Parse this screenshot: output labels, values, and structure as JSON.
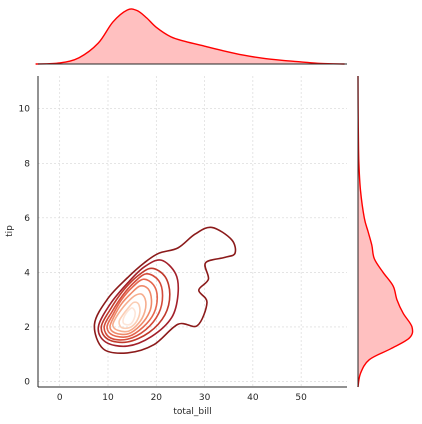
{
  "chart_data": {
    "type": "joint-kde",
    "xlabel": "total_bill",
    "ylabel": "tip",
    "xlim": [
      -4.5,
      59.5
    ],
    "ylim": [
      -0.2,
      11.2
    ],
    "x_ticks": [
      0,
      10,
      20,
      30,
      40,
      50
    ],
    "y_ticks": [
      0,
      2,
      4,
      6,
      8,
      10
    ],
    "grid": true,
    "colors": {
      "marginal_line": "#ff0000",
      "marginal_fill": "#ffc0c0",
      "contour_outer": "#7f0e17",
      "contour_inner": "#fde7d9"
    },
    "contours": [
      {
        "level": 1,
        "color": "#8b1a1a",
        "points": [
          [
            9.0,
            1.2
          ],
          [
            14.0,
            1.05
          ],
          [
            19.5,
            1.35
          ],
          [
            24.5,
            2.1
          ],
          [
            28.5,
            2.05
          ],
          [
            30.5,
            2.9
          ],
          [
            28.8,
            3.35
          ],
          [
            30.8,
            3.75
          ],
          [
            30.2,
            4.35
          ],
          [
            34.2,
            4.55
          ],
          [
            36.3,
            4.7
          ],
          [
            35.6,
            5.2
          ],
          [
            31.5,
            5.65
          ],
          [
            28.0,
            5.4
          ],
          [
            24.5,
            4.9
          ],
          [
            20.5,
            4.7
          ],
          [
            17.5,
            4.35
          ],
          [
            14.0,
            3.8
          ],
          [
            10.0,
            3.05
          ],
          [
            7.2,
            2.1
          ]
        ]
      },
      {
        "level": 2,
        "color": "#a3202a",
        "points": [
          [
            9.5,
            1.45
          ],
          [
            14.0,
            1.3
          ],
          [
            19.0,
            1.65
          ],
          [
            23.2,
            2.35
          ],
          [
            24.5,
            3.2
          ],
          [
            24.0,
            3.95
          ],
          [
            21.0,
            4.45
          ],
          [
            17.5,
            4.2
          ],
          [
            14.0,
            3.6
          ],
          [
            10.5,
            2.85
          ],
          [
            8.0,
            2.0
          ]
        ]
      },
      {
        "level": 3,
        "color": "#c0392b",
        "points": [
          [
            10.0,
            1.55
          ],
          [
            14.0,
            1.45
          ],
          [
            18.5,
            1.8
          ],
          [
            21.8,
            2.45
          ],
          [
            22.8,
            3.2
          ],
          [
            21.8,
            3.85
          ],
          [
            19.0,
            4.15
          ],
          [
            16.0,
            3.85
          ],
          [
            13.0,
            3.3
          ],
          [
            10.5,
            2.65
          ],
          [
            8.6,
            2.0
          ]
        ]
      },
      {
        "level": 4,
        "color": "#d44b3a",
        "points": [
          [
            10.5,
            1.6
          ],
          [
            14.0,
            1.55
          ],
          [
            17.8,
            1.9
          ],
          [
            20.5,
            2.5
          ],
          [
            21.3,
            3.15
          ],
          [
            20.5,
            3.7
          ],
          [
            18.0,
            3.95
          ],
          [
            15.5,
            3.65
          ],
          [
            13.0,
            3.15
          ],
          [
            10.8,
            2.55
          ],
          [
            9.2,
            2.0
          ]
        ]
      },
      {
        "level": 5,
        "color": "#e5674e",
        "points": [
          [
            11.0,
            1.7
          ],
          [
            14.2,
            1.65
          ],
          [
            17.3,
            2.0
          ],
          [
            19.5,
            2.5
          ],
          [
            20.2,
            3.1
          ],
          [
            19.4,
            3.55
          ],
          [
            17.3,
            3.75
          ],
          [
            15.0,
            3.45
          ],
          [
            12.8,
            3.0
          ],
          [
            11.0,
            2.45
          ],
          [
            9.8,
            2.0
          ]
        ]
      },
      {
        "level": 6,
        "color": "#ef8a6a",
        "points": [
          [
            11.5,
            1.78
          ],
          [
            14.2,
            1.75
          ],
          [
            16.8,
            2.08
          ],
          [
            18.6,
            2.55
          ],
          [
            19.0,
            3.0
          ],
          [
            18.3,
            3.4
          ],
          [
            16.6,
            3.5
          ],
          [
            14.6,
            3.2
          ],
          [
            12.8,
            2.85
          ],
          [
            11.3,
            2.4
          ],
          [
            10.4,
            2.0
          ]
        ]
      },
      {
        "level": 7,
        "color": "#f6ad8e",
        "points": [
          [
            12.0,
            1.88
          ],
          [
            14.3,
            1.85
          ],
          [
            16.4,
            2.15
          ],
          [
            17.6,
            2.55
          ],
          [
            17.8,
            2.95
          ],
          [
            17.0,
            3.2
          ],
          [
            15.6,
            3.15
          ],
          [
            14.0,
            2.9
          ],
          [
            12.6,
            2.6
          ],
          [
            11.5,
            2.3
          ],
          [
            11.0,
            2.05
          ]
        ]
      },
      {
        "level": 8,
        "color": "#fbcdb4",
        "points": [
          [
            12.8,
            1.98
          ],
          [
            14.5,
            1.98
          ],
          [
            15.9,
            2.2
          ],
          [
            16.6,
            2.55
          ],
          [
            16.3,
            2.85
          ],
          [
            15.3,
            2.9
          ],
          [
            14.2,
            2.7
          ],
          [
            13.1,
            2.45
          ],
          [
            12.3,
            2.2
          ]
        ]
      },
      {
        "level": 9,
        "color": "#fde5d8",
        "points": [
          [
            13.5,
            2.1
          ],
          [
            14.6,
            2.1
          ],
          [
            15.4,
            2.3
          ],
          [
            15.6,
            2.55
          ],
          [
            15.0,
            2.7
          ],
          [
            14.2,
            2.6
          ],
          [
            13.4,
            2.4
          ],
          [
            13.1,
            2.2
          ]
        ]
      }
    ],
    "marginal_x_density": {
      "x": [
        -5,
        0,
        4,
        8,
        11,
        14,
        16,
        18,
        20,
        23,
        26,
        30,
        34,
        38,
        42,
        46,
        50,
        54,
        59
      ],
      "density": [
        0.0,
        0.002,
        0.012,
        0.04,
        0.08,
        0.103,
        0.102,
        0.088,
        0.07,
        0.052,
        0.043,
        0.034,
        0.025,
        0.017,
        0.011,
        0.007,
        0.004,
        0.001,
        0.0
      ]
    },
    "marginal_y_density": {
      "y": [
        -0.2,
        0.3,
        0.8,
        1.2,
        1.6,
        2.0,
        2.5,
        3.0,
        3.5,
        4.0,
        4.5,
        5.0,
        5.5,
        6.0,
        7.0,
        8.0,
        9.0,
        10.0,
        11.2
      ],
      "density": [
        0.0,
        0.02,
        0.09,
        0.26,
        0.41,
        0.43,
        0.36,
        0.31,
        0.28,
        0.2,
        0.13,
        0.11,
        0.08,
        0.05,
        0.02,
        0.007,
        0.003,
        0.001,
        0.0
      ]
    }
  }
}
